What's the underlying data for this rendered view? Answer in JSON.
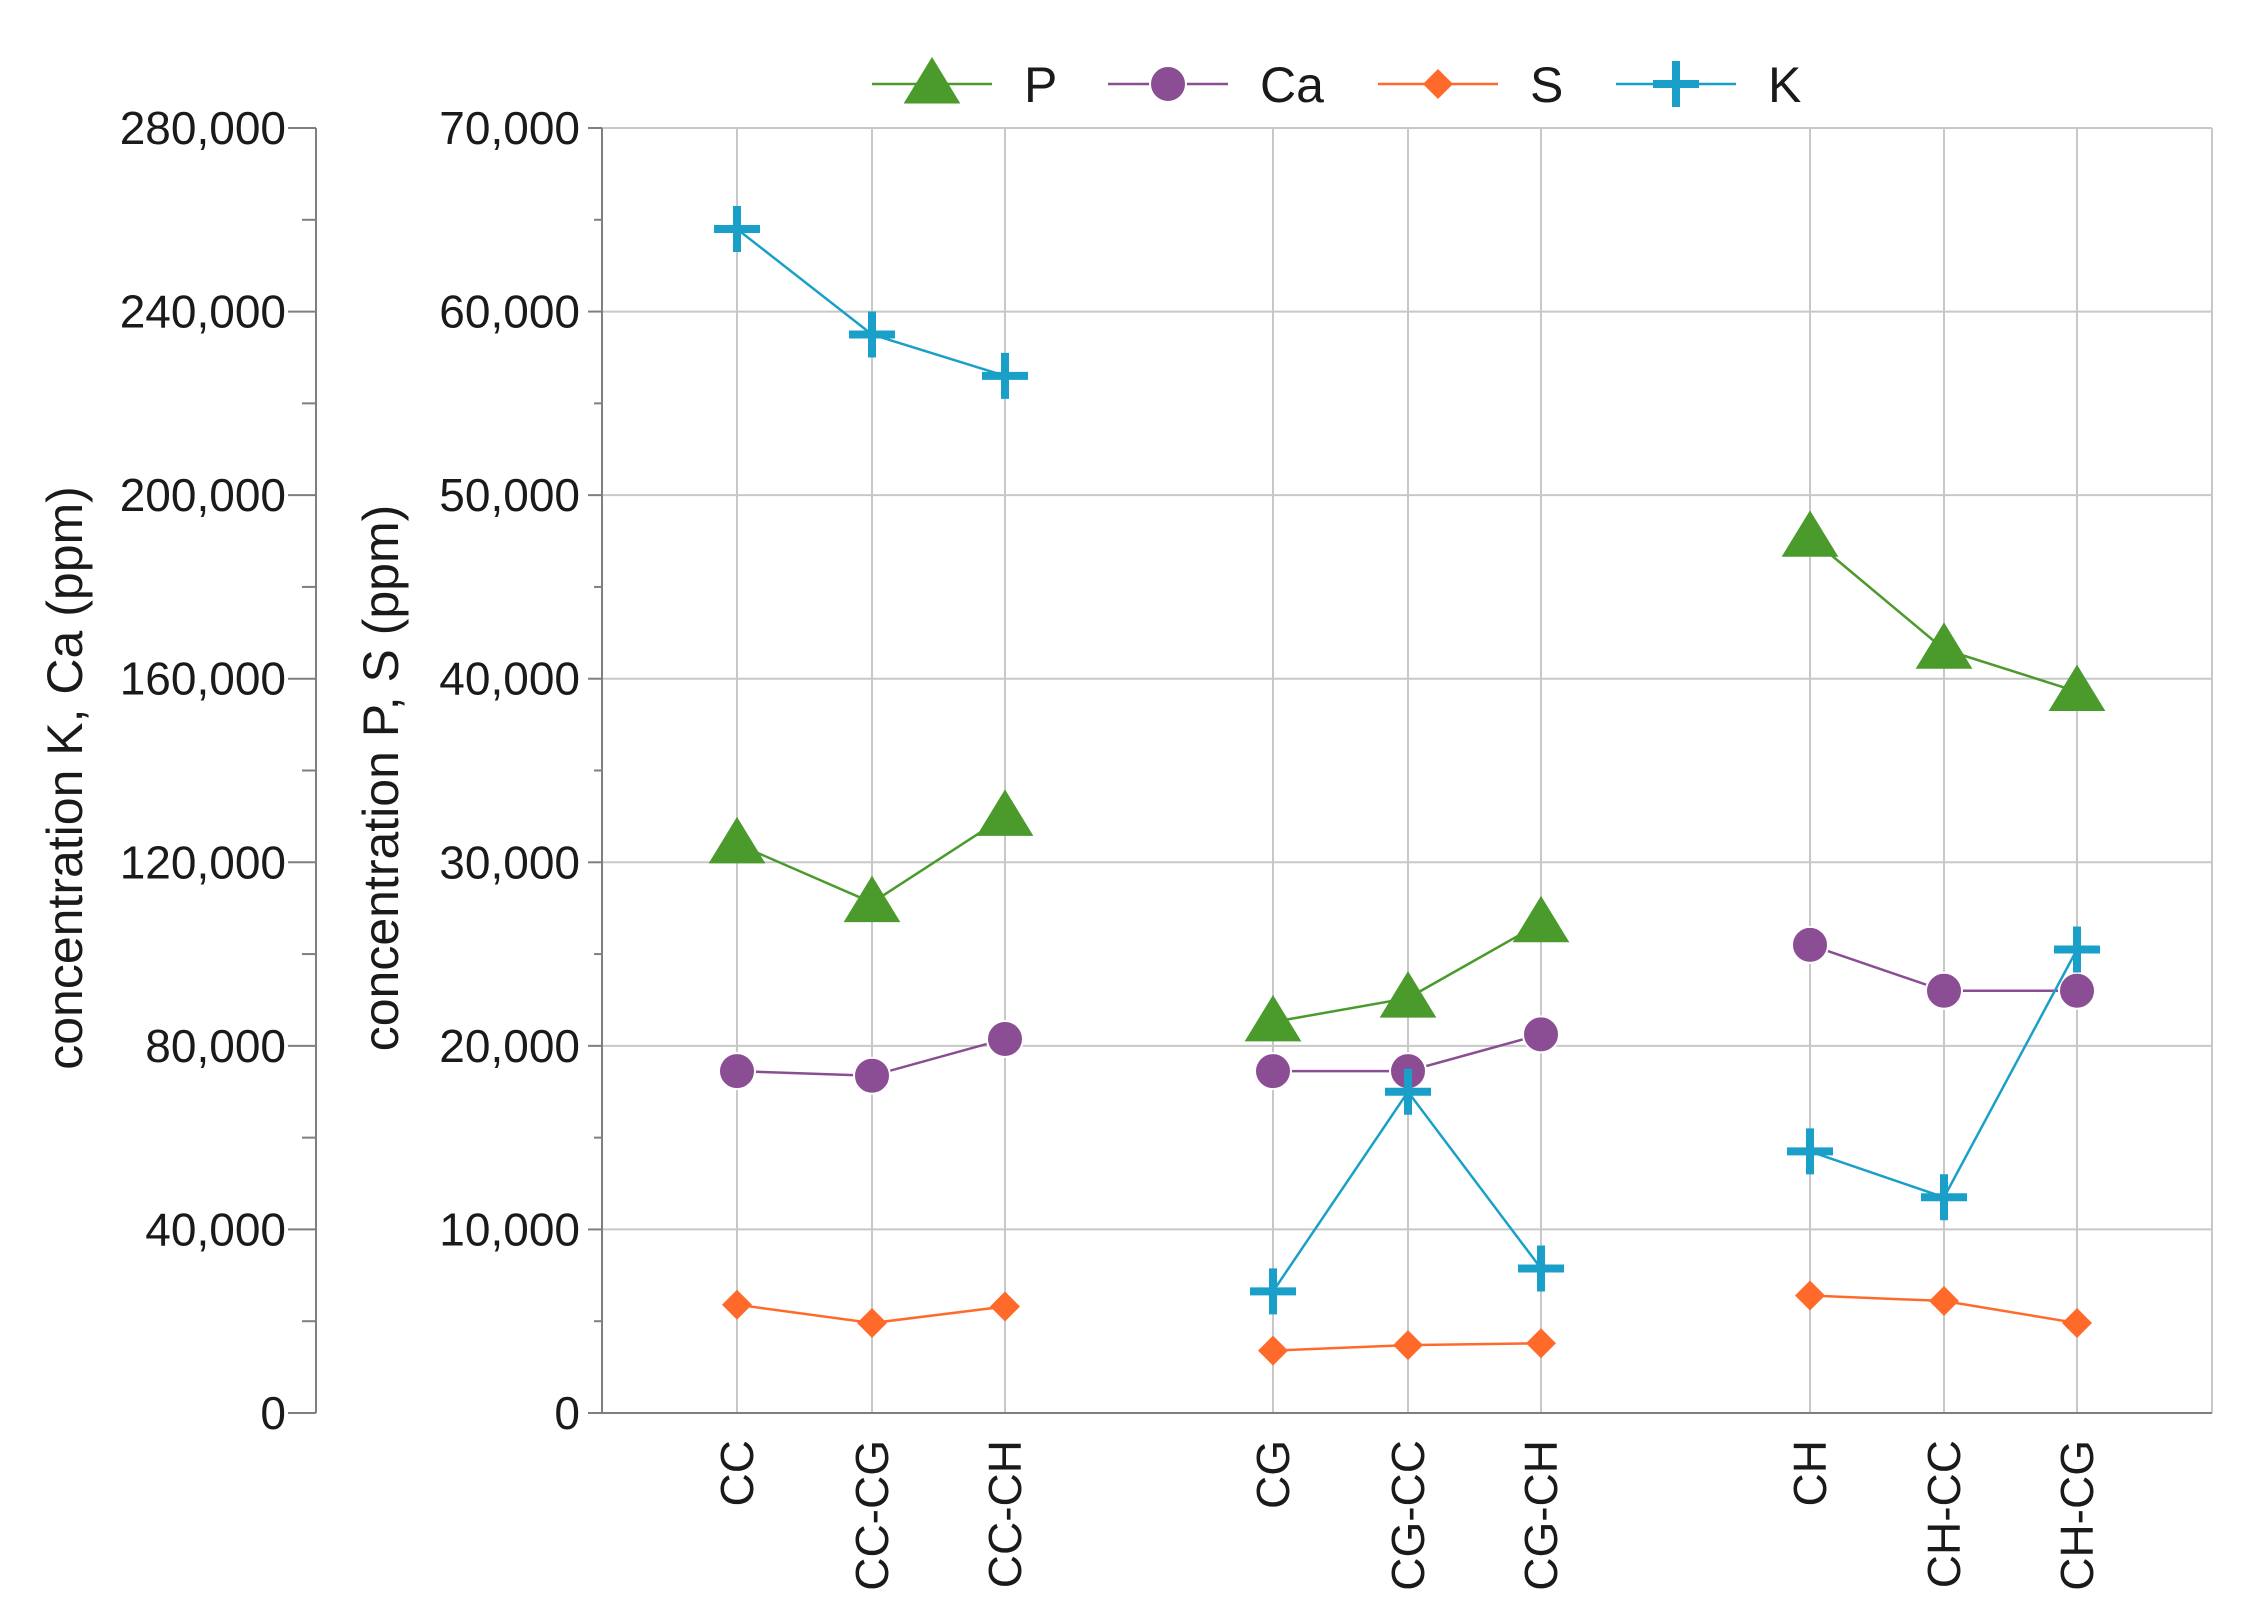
{
  "chart_data": {
    "type": "line",
    "title": "",
    "xlabel": "",
    "ylabel_left_outer": "concentration K, Ca (ppm)",
    "ylabel_left_inner": "concentration P, S (ppm)",
    "outer_axis": {
      "range": [
        0,
        280000
      ],
      "ticks": [
        0,
        40000,
        80000,
        120000,
        160000,
        200000,
        240000,
        280000
      ],
      "tick_labels": [
        "0",
        "40,000",
        "80,000",
        "120,000",
        "160,000",
        "200,000",
        "240,000",
        "280,000"
      ]
    },
    "inner_axis": {
      "range": [
        0,
        70000
      ],
      "ticks": [
        0,
        10000,
        20000,
        30000,
        40000,
        50000,
        60000,
        70000
      ],
      "tick_labels": [
        "0",
        "10,000",
        "20,000",
        "30,000",
        "40,000",
        "50,000",
        "60,000",
        "70,000"
      ]
    },
    "groups": [
      [
        "CC",
        "CC-CG",
        "CC-CH"
      ],
      [
        "CG",
        "CG-CC",
        "CG-CH"
      ],
      [
        "CH",
        "CH-CC",
        "CH-CG"
      ]
    ],
    "grid": true,
    "legend_position": "top",
    "series": [
      {
        "name": "P",
        "axis": "inner",
        "marker": "triangle",
        "color": "#4a9a2c",
        "values": [
          [
            31000,
            27800,
            32500
          ],
          [
            21300,
            22600,
            26700
          ],
          [
            47700,
            41600,
            39300
          ]
        ]
      },
      {
        "name": "Ca",
        "axis": "outer",
        "marker": "circle",
        "color": "#8b4e94",
        "values": [
          [
            74500,
            73500,
            81500
          ],
          [
            74500,
            74500,
            82500
          ],
          [
            102000,
            92000,
            92000
          ]
        ]
      },
      {
        "name": "S",
        "axis": "inner",
        "marker": "diamond",
        "color": "#ff6a2a",
        "values": [
          [
            5900,
            4900,
            5800
          ],
          [
            3400,
            3700,
            3800
          ],
          [
            6400,
            6100,
            4900
          ]
        ]
      },
      {
        "name": "K",
        "axis": "outer",
        "marker": "plus",
        "color": "#1aa0c8",
        "values": [
          [
            258000,
            235000,
            226000
          ],
          [
            26500,
            70000,
            31500
          ],
          [
            57000,
            47000,
            101000
          ]
        ]
      }
    ]
  }
}
